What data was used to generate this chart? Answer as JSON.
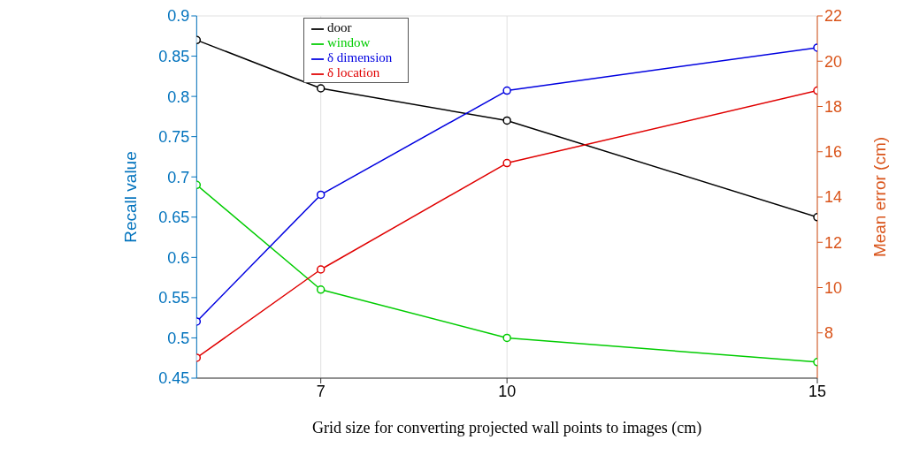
{
  "chart_data": {
    "type": "line",
    "xlabel": "Grid size for converting projected wall points to images (cm)",
    "ylabel": "Recall value",
    "y2label": "Mean error (cm)",
    "x": [
      5,
      7,
      10,
      15
    ],
    "xlim": [
      5,
      15
    ],
    "xticks": [
      7,
      10,
      15
    ],
    "ylim": [
      0.45,
      0.9
    ],
    "yticks": [
      0.45,
      0.5,
      0.55,
      0.6,
      0.65,
      0.7,
      0.75,
      0.8,
      0.85,
      0.9
    ],
    "y2lim": [
      6,
      22
    ],
    "y2ticks": [
      8,
      10,
      12,
      14,
      16,
      18,
      20,
      22
    ],
    "grid": true,
    "legend": "top",
    "marker": "circle",
    "line_style": "solid",
    "series": [
      {
        "name": "door",
        "color": "#000000",
        "values": [
          0.87,
          0.81,
          0.77,
          0.65
        ]
      },
      {
        "name": "window",
        "color": "#00cc00",
        "values": [
          0.69,
          0.56,
          0.5,
          0.47
        ]
      },
      {
        "name": "δ location",
        "color": "#e00000",
        "axis": "y2",
        "values": [
          6.9,
          10.8,
          15.5,
          18.7
        ]
      },
      {
        "name": "δ dimension",
        "color": "#0000e0",
        "axis": "y2",
        "values": [
          8.5,
          14.1,
          18.7,
          20.6
        ]
      }
    ]
  }
}
